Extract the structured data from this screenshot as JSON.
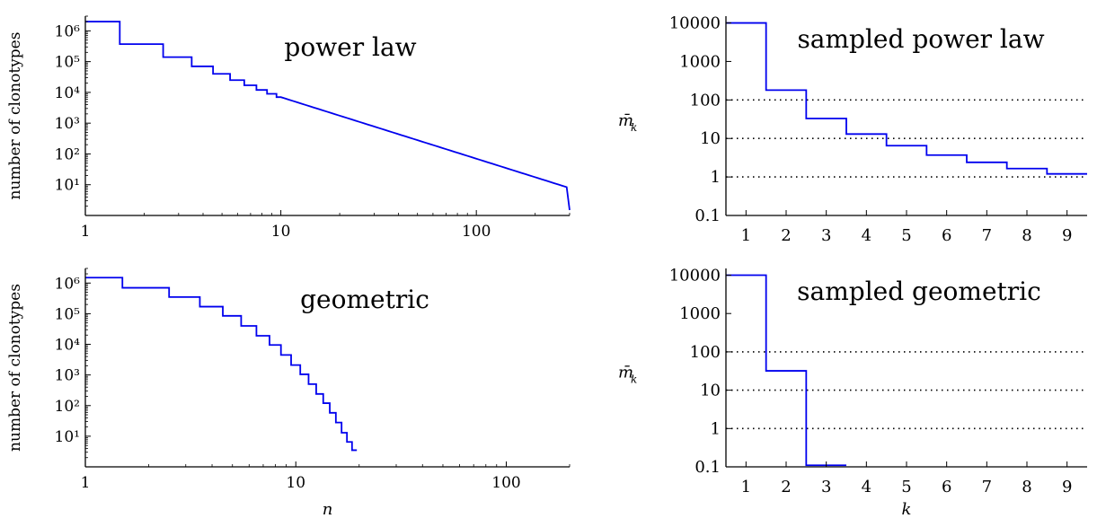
{
  "chart_data": [
    {
      "id": "top-left",
      "type": "line",
      "step": true,
      "title": "power law",
      "xlabel": "",
      "ylabel": "number of clonotypes",
      "xscale": "log",
      "yscale": "log",
      "xlim": [
        1,
        300
      ],
      "ylim": [
        1,
        3000000
      ],
      "xticks": [
        1,
        10,
        100
      ],
      "xtick_labels": [
        "1",
        "10",
        "100"
      ],
      "yticks": [
        10,
        100,
        1000,
        10000,
        100000,
        1000000
      ],
      "ytick_labels": [
        "10¹",
        "10²",
        "10³",
        "10⁴",
        "10⁵",
        "10⁶"
      ],
      "series": [
        {
          "color": "#0000ee",
          "model": "power law",
          "exponent": -2,
          "x": [
            1,
            2,
            3,
            4,
            5,
            6,
            7,
            8,
            9,
            10,
            20,
            50,
            100,
            300
          ],
          "values": [
            2000000,
            370000,
            140000,
            70000,
            40000,
            25000,
            17000,
            12000,
            9000,
            7000,
            1750,
            280,
            70,
            1.5
          ]
        }
      ]
    },
    {
      "id": "top-right",
      "type": "line",
      "step": true,
      "title": "sampled power law",
      "xlabel": "",
      "ylabel": "m̄",
      "ylabel_sub": "k",
      "xscale": "linear",
      "yscale": "log",
      "xlim": [
        0.5,
        9.5
      ],
      "ylim": [
        0.1,
        15000
      ],
      "xticks": [
        1,
        2,
        3,
        4,
        5,
        6,
        7,
        8,
        9
      ],
      "xtick_labels": [
        "1",
        "2",
        "3",
        "4",
        "5",
        "6",
        "7",
        "8",
        "9"
      ],
      "yticks": [
        0.1,
        1,
        10,
        100,
        1000,
        10000
      ],
      "ytick_labels": [
        "0.1",
        "1",
        "10",
        "100",
        "1000",
        "10000"
      ],
      "reference_lines": [
        1,
        10,
        100
      ],
      "series": [
        {
          "color": "#0000ee",
          "x": [
            1,
            2,
            3,
            4,
            5,
            6,
            7,
            8,
            9
          ],
          "values": [
            10000,
            180,
            33,
            13,
            6.5,
            3.7,
            2.4,
            1.65,
            1.2
          ]
        }
      ]
    },
    {
      "id": "bottom-left",
      "type": "line",
      "step": true,
      "title": "geometric",
      "xlabel": "n",
      "ylabel": "number of clonotypes",
      "xscale": "log",
      "yscale": "log",
      "xlim": [
        1,
        200
      ],
      "ylim": [
        1,
        3000000
      ],
      "xticks": [
        1,
        10,
        100
      ],
      "xtick_labels": [
        "1",
        "10",
        "100"
      ],
      "yticks": [
        10,
        100,
        1000,
        10000,
        100000,
        1000000
      ],
      "ytick_labels": [
        "10¹",
        "10²",
        "10³",
        "10⁴",
        "10⁵",
        "10⁶"
      ],
      "series": [
        {
          "color": "#0000ee",
          "x": [
            1,
            2,
            3,
            4,
            5,
            6,
            7,
            8,
            9,
            10,
            11,
            12,
            13,
            14,
            15,
            16,
            17,
            18,
            19
          ],
          "values": [
            1500000,
            700000,
            350000,
            170000,
            85000,
            40000,
            19000,
            9500,
            4500,
            2100,
            1050,
            500,
            240,
            120,
            58,
            28,
            13,
            6.5,
            3.5
          ]
        }
      ]
    },
    {
      "id": "bottom-right",
      "type": "line",
      "step": true,
      "title": "sampled geometric",
      "xlabel": "k",
      "ylabel": "m̄",
      "ylabel_sub": "k",
      "xscale": "linear",
      "yscale": "log",
      "xlim": [
        0.5,
        9.5
      ],
      "ylim": [
        0.1,
        15000
      ],
      "xticks": [
        1,
        2,
        3,
        4,
        5,
        6,
        7,
        8,
        9
      ],
      "xtick_labels": [
        "1",
        "2",
        "3",
        "4",
        "5",
        "6",
        "7",
        "8",
        "9"
      ],
      "yticks": [
        0.1,
        1,
        10,
        100,
        1000,
        10000
      ],
      "ytick_labels": [
        "0.1",
        "1",
        "10",
        "100",
        "1000",
        "10000"
      ],
      "reference_lines": [
        1,
        10,
        100
      ],
      "series": [
        {
          "color": "#0000ee",
          "x": [
            1,
            2,
            3
          ],
          "values": [
            10000,
            32,
            0.11
          ]
        }
      ]
    }
  ]
}
